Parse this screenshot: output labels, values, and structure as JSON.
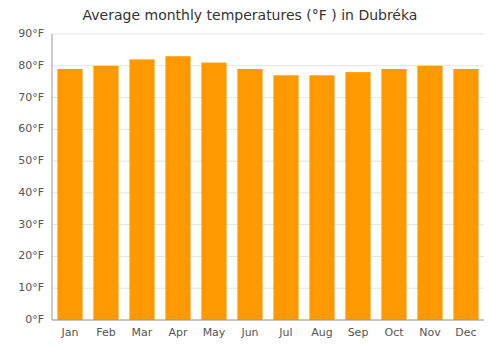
{
  "chart_data": {
    "type": "bar",
    "title": "Average monthly temperatures (°F ) in Dubréka",
    "categories": [
      "Jan",
      "Feb",
      "Mar",
      "Apr",
      "May",
      "Jun",
      "Jul",
      "Aug",
      "Sep",
      "Oct",
      "Nov",
      "Dec"
    ],
    "values": [
      79,
      80,
      82,
      83,
      81,
      79,
      77,
      77,
      78,
      79,
      80,
      79
    ],
    "color": "#FF9900",
    "ylim": [
      0,
      90
    ],
    "yticks": [
      {
        "value": 0,
        "label": "0°F"
      },
      {
        "value": 10,
        "label": "10°F"
      },
      {
        "value": 20,
        "label": "20°F"
      },
      {
        "value": 30,
        "label": "30°F"
      },
      {
        "value": 40,
        "label": "40°F"
      },
      {
        "value": 50,
        "label": "50°F"
      },
      {
        "value": 60,
        "label": "60°F"
      },
      {
        "value": 70,
        "label": "70°F"
      },
      {
        "value": 80,
        "label": "80°F"
      },
      {
        "value": 90,
        "label": "90°F"
      }
    ],
    "grid": true
  }
}
